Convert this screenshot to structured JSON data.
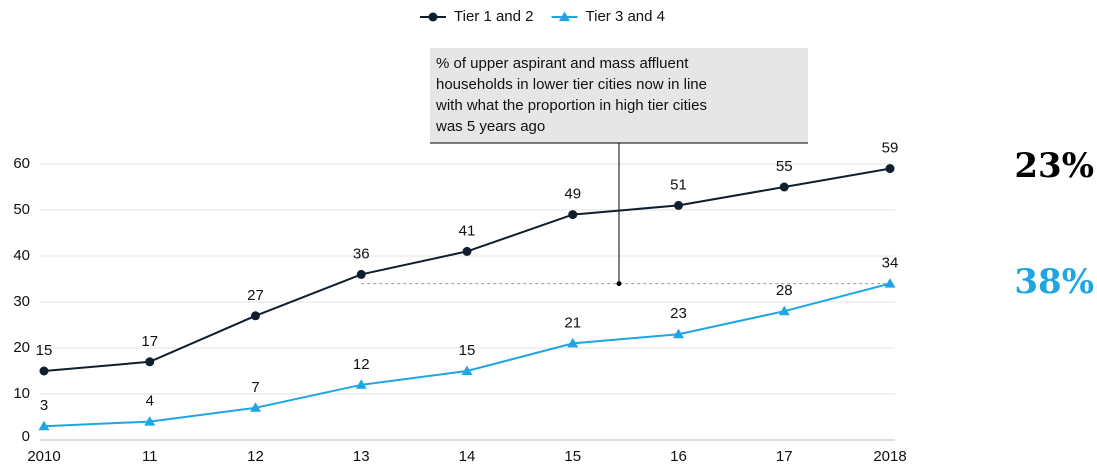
{
  "chart_data": {
    "type": "line",
    "categories": [
      "2010",
      "11",
      "12",
      "13",
      "14",
      "15",
      "16",
      "17",
      "2018"
    ],
    "series": [
      {
        "name": "Tier 1 and 2",
        "color": "#0f1f2e",
        "marker": "circle",
        "values": [
          15,
          17,
          27,
          36,
          41,
          49,
          51,
          55,
          59
        ]
      },
      {
        "name": "Tier 3 and 4",
        "color": "#1ea6e4",
        "marker": "triangle",
        "values": [
          3,
          4,
          7,
          12,
          15,
          21,
          23,
          28,
          34
        ]
      }
    ],
    "ylim": [
      0,
      60
    ],
    "yticks": [
      0,
      10,
      20,
      30,
      40,
      50,
      60
    ],
    "grid": true,
    "legend": "top",
    "annotation": {
      "lines": [
        "% of upper aspirant and mass affluent",
        "households in lower tier cities now in line",
        "with what the proportion in high tier cities",
        "was 5 years ago"
      ]
    },
    "side_labels": [
      {
        "text": "23%",
        "color": "#000000"
      },
      {
        "text": "38%",
        "color": "#1ea6e4"
      }
    ]
  }
}
